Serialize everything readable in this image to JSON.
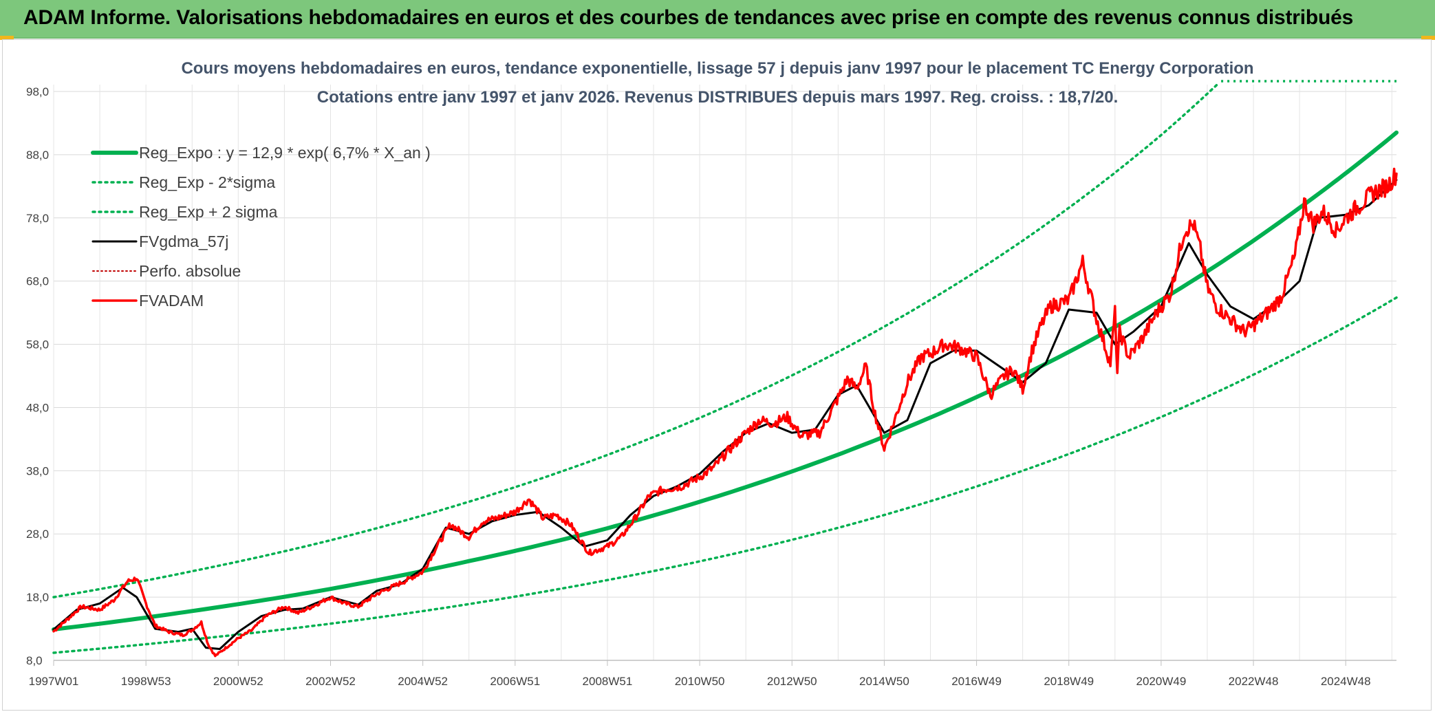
{
  "banner": {
    "title": "ADAM Informe. Valorisations hebdomadaires en euros et des courbes de tendances avec prise en compte des revenus connus distribués"
  },
  "colors": {
    "banner_bg": "#7dc77c",
    "reg_expo": "#00b050",
    "fvgdma": "#000000",
    "fvadam": "#ff0000",
    "perfo": "#c00000",
    "subtitle": "#44546a"
  },
  "chart_data": {
    "type": "line",
    "title_line1": "Cours moyens hebdomadaires en euros, tendance exponentielle, lissage 57 j depuis janv 1997 pour le placement TC Energy Corporation",
    "title_line2": "Cotations entre janv 1997 et janv 2026. Revenus DISTRIBUES depuis mars 1997. Reg. croiss. : 18,7/20.",
    "ylim": [
      8,
      100
    ],
    "xlim": [
      1997.0,
      2026.1
    ],
    "y_ticks": [
      "8,0",
      "18,0",
      "28,0",
      "38,0",
      "48,0",
      "58,0",
      "68,0",
      "78,0",
      "88,0",
      "98,0"
    ],
    "x_ticks": [
      "1997W01",
      "1998W53",
      "2000W52",
      "2002W52",
      "2004W52",
      "2006W51",
      "2008W51",
      "2010W50",
      "2012W50",
      "2014W50",
      "2016W49",
      "2018W49",
      "2020W49",
      "2022W48",
      "2024W48"
    ],
    "x_tick_years": [
      1997.0,
      1999.0,
      2001.0,
      2003.0,
      2005.0,
      2007.0,
      2009.0,
      2011.0,
      2013.0,
      2015.0,
      2017.0,
      2019.0,
      2021.0,
      2023.0,
      2025.0
    ],
    "grid": true,
    "legend_position": "top-left",
    "legend": [
      {
        "key": "reg_expo",
        "label": "Reg_Expo : y = 12,9 * exp( 6,7% *  X_an )"
      },
      {
        "key": "reg_minus",
        "label": "Reg_Exp - 2*sigma"
      },
      {
        "key": "reg_plus",
        "label": "Reg_Exp + 2 sigma"
      },
      {
        "key": "fvgdma",
        "label": "FVgdma_57j"
      },
      {
        "key": "perfo",
        "label": "Perfo. absolue"
      },
      {
        "key": "fvadam",
        "label": "FVADAM"
      }
    ],
    "series": [
      {
        "name": "Reg_Expo : y = 12,9 * exp( 6,7% *  X_an )",
        "key": "reg_expo",
        "x": [
          1997.0,
          2000.0,
          2003.0,
          2006.0,
          2009.0,
          2012.0,
          2015.0,
          2018.0,
          2021.0,
          2024.0,
          2026.1
        ],
        "values": [
          12.9,
          15.8,
          19.3,
          23.7,
          28.9,
          35.4,
          43.4,
          53.1,
          65.0,
          79.6,
          91.5
        ]
      },
      {
        "name": "Reg_Exp - 2*sigma",
        "key": "reg_minus",
        "x": [
          1997.0,
          2000.0,
          2003.0,
          2006.0,
          2009.0,
          2012.0,
          2015.0,
          2018.0,
          2021.0,
          2024.0,
          2026.1
        ],
        "values": [
          9.2,
          11.3,
          13.8,
          16.9,
          20.7,
          25.3,
          31.0,
          38.0,
          46.5,
          56.9,
          65.4
        ]
      },
      {
        "name": "Reg_Exp + 2 sigma",
        "key": "reg_plus",
        "x": [
          1997.0,
          2000.0,
          2003.0,
          2006.0,
          2009.0,
          2012.0,
          2015.0,
          2018.0,
          2021.0,
          2022.2
        ],
        "values": [
          18.0,
          22.1,
          27.0,
          33.1,
          40.5,
          49.6,
          60.8,
          74.4,
          91.1,
          99.0
        ]
      },
      {
        "name": "FVgdma_57j",
        "key": "fvgdma",
        "x": [
          1997.0,
          1997.5,
          1998.0,
          1998.5,
          1998.8,
          1999.2,
          1999.7,
          2000.0,
          2000.3,
          2000.6,
          2001.0,
          2001.5,
          2002.0,
          2002.4,
          2003.0,
          2003.6,
          2004.0,
          2004.5,
          2005.0,
          2005.5,
          2006.0,
          2006.5,
          2007.0,
          2007.5,
          2008.0,
          2008.5,
          2009.0,
          2009.5,
          2010.0,
          2010.5,
          2011.0,
          2011.5,
          2012.0,
          2012.5,
          2013.0,
          2013.5,
          2014.0,
          2014.4,
          2015.0,
          2015.5,
          2016.0,
          2016.5,
          2017.0,
          2017.4,
          2018.0,
          2018.5,
          2019.0,
          2019.6,
          2020.0,
          2020.4,
          2021.0,
          2021.6,
          2022.0,
          2022.5,
          2023.0,
          2023.5,
          2024.0,
          2024.4,
          2025.0,
          2025.5,
          2026.1
        ],
        "values": [
          12.9,
          16.0,
          17.0,
          19.5,
          18.0,
          13.0,
          12.5,
          13.0,
          10.0,
          9.8,
          12.5,
          15.0,
          16.0,
          16.2,
          18.0,
          16.8,
          19.0,
          20.0,
          22.5,
          29.0,
          28.0,
          30.0,
          31.0,
          31.5,
          29.0,
          26.0,
          27.0,
          31.0,
          34.0,
          35.5,
          37.5,
          41.0,
          44.0,
          45.5,
          44.0,
          44.5,
          50.0,
          51.5,
          44.0,
          46.0,
          55.0,
          57.0,
          57.0,
          55.0,
          52.0,
          55.0,
          63.5,
          63.0,
          58.0,
          60.0,
          64.0,
          74.0,
          69.0,
          64.0,
          62.0,
          64.5,
          68.0,
          78.0,
          78.5,
          80.0,
          84.0
        ]
      },
      {
        "name": "Perfo. absolue",
        "key": "perfo",
        "x": [],
        "values": []
      },
      {
        "name": "FVADAM",
        "key": "fvadam",
        "x": [
          1997.0,
          1997.3,
          1997.6,
          1998.0,
          1998.3,
          1998.6,
          1998.8,
          1999.0,
          1999.2,
          1999.5,
          1999.8,
          2000.0,
          2000.2,
          2000.35,
          2000.5,
          2000.7,
          2001.0,
          2001.3,
          2001.6,
          2002.0,
          2002.3,
          2002.6,
          2003.0,
          2003.3,
          2003.6,
          2004.0,
          2004.3,
          2004.6,
          2005.0,
          2005.3,
          2005.6,
          2006.0,
          2006.3,
          2006.6,
          2007.0,
          2007.3,
          2007.6,
          2007.9,
          2008.2,
          2008.6,
          2009.0,
          2009.3,
          2009.6,
          2009.9,
          2010.2,
          2010.6,
          2011.0,
          2011.3,
          2011.6,
          2012.0,
          2012.3,
          2012.6,
          2012.9,
          2013.2,
          2013.6,
          2014.0,
          2014.2,
          2014.4,
          2014.6,
          2014.8,
          2015.0,
          2015.2,
          2015.5,
          2015.8,
          2016.0,
          2016.3,
          2016.6,
          2017.0,
          2017.3,
          2017.6,
          2017.8,
          2018.0,
          2018.2,
          2018.4,
          2018.6,
          2019.0,
          2019.3,
          2019.6,
          2019.9,
          2020.0,
          2020.05,
          2020.1,
          2020.3,
          2020.6,
          2020.9,
          2021.2,
          2021.5,
          2021.7,
          2021.85,
          2022.0,
          2022.2,
          2022.5,
          2022.8,
          2023.0,
          2023.3,
          2023.6,
          2023.9,
          2024.1,
          2024.3,
          2024.5,
          2024.8,
          2025.0,
          2025.3,
          2025.6,
          2025.9,
          2026.1
        ],
        "values": [
          12.6,
          14.5,
          16.5,
          16.0,
          17.5,
          20.5,
          21.0,
          17.0,
          13.5,
          12.5,
          12.0,
          12.8,
          14.0,
          10.5,
          8.7,
          9.8,
          11.5,
          12.8,
          15.0,
          16.5,
          15.5,
          16.5,
          18.0,
          17.0,
          16.5,
          18.5,
          19.5,
          20.5,
          22.0,
          26.0,
          29.5,
          27.5,
          30.0,
          30.5,
          31.5,
          33.5,
          30.5,
          31.0,
          29.5,
          25.0,
          26.0,
          27.5,
          30.5,
          34.0,
          35.0,
          35.5,
          37.0,
          38.5,
          41.0,
          44.0,
          46.0,
          45.5,
          46.5,
          43.5,
          44.0,
          49.5,
          52.5,
          51.0,
          54.5,
          47.0,
          41.5,
          45.5,
          52.0,
          56.0,
          56.5,
          58.0,
          57.5,
          56.0,
          50.0,
          53.0,
          54.0,
          51.0,
          57.0,
          61.0,
          64.0,
          65.0,
          71.0,
          62.0,
          55.0,
          63.0,
          53.5,
          60.0,
          56.0,
          59.0,
          63.0,
          66.0,
          76.0,
          77.0,
          73.0,
          67.0,
          64.0,
          62.0,
          60.0,
          61.0,
          63.0,
          65.5,
          72.0,
          80.5,
          77.0,
          79.0,
          76.0,
          78.0,
          80.0,
          82.0,
          83.0,
          85.0
        ]
      }
    ]
  }
}
